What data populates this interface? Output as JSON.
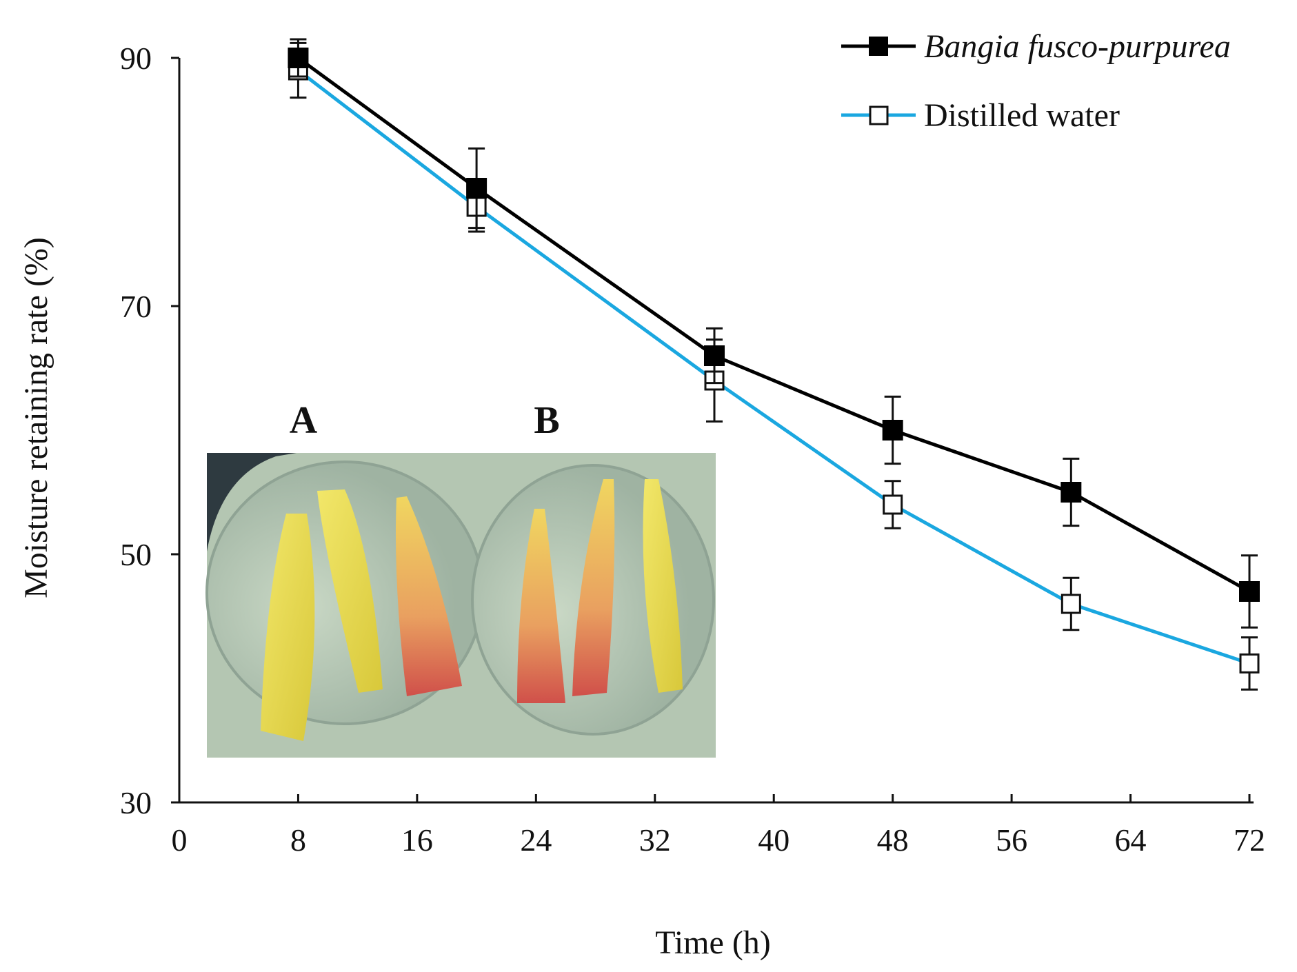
{
  "chart_data": {
    "type": "line",
    "title": "",
    "xlabel": "Time (h)",
    "ylabel": "Moisture retaining rate (%)",
    "xlim": [
      0,
      72
    ],
    "ylim": [
      30,
      90
    ],
    "x_ticks": [
      "0",
      "8",
      "16",
      "24",
      "32",
      "40",
      "48",
      "56",
      "64",
      "72"
    ],
    "y_ticks": [
      "30",
      "50",
      "70",
      "90"
    ],
    "legend_position": "top-right",
    "grid": false,
    "series": [
      {
        "name": "Bangia fusco-purpurea",
        "color": "#000000",
        "marker": "filled-square",
        "x": [
          8,
          20,
          36,
          48,
          60,
          72
        ],
        "values": [
          90,
          79.5,
          66,
          60,
          55,
          47
        ],
        "errors": [
          1.5,
          3.2,
          2.2,
          2.7,
          2.7,
          2.9
        ]
      },
      {
        "name": "Distilled water",
        "color": "#1aa7e0",
        "marker": "open-square",
        "x": [
          8,
          20,
          36,
          48,
          60,
          72
        ],
        "values": [
          89,
          78,
          64,
          54,
          46,
          41.2
        ],
        "errors": [
          2.2,
          2.0,
          3.3,
          1.9,
          2.1,
          2.1
        ]
      }
    ],
    "inset": {
      "labels": [
        "A",
        "B"
      ],
      "image_alt": "photo of apple slices"
    }
  }
}
